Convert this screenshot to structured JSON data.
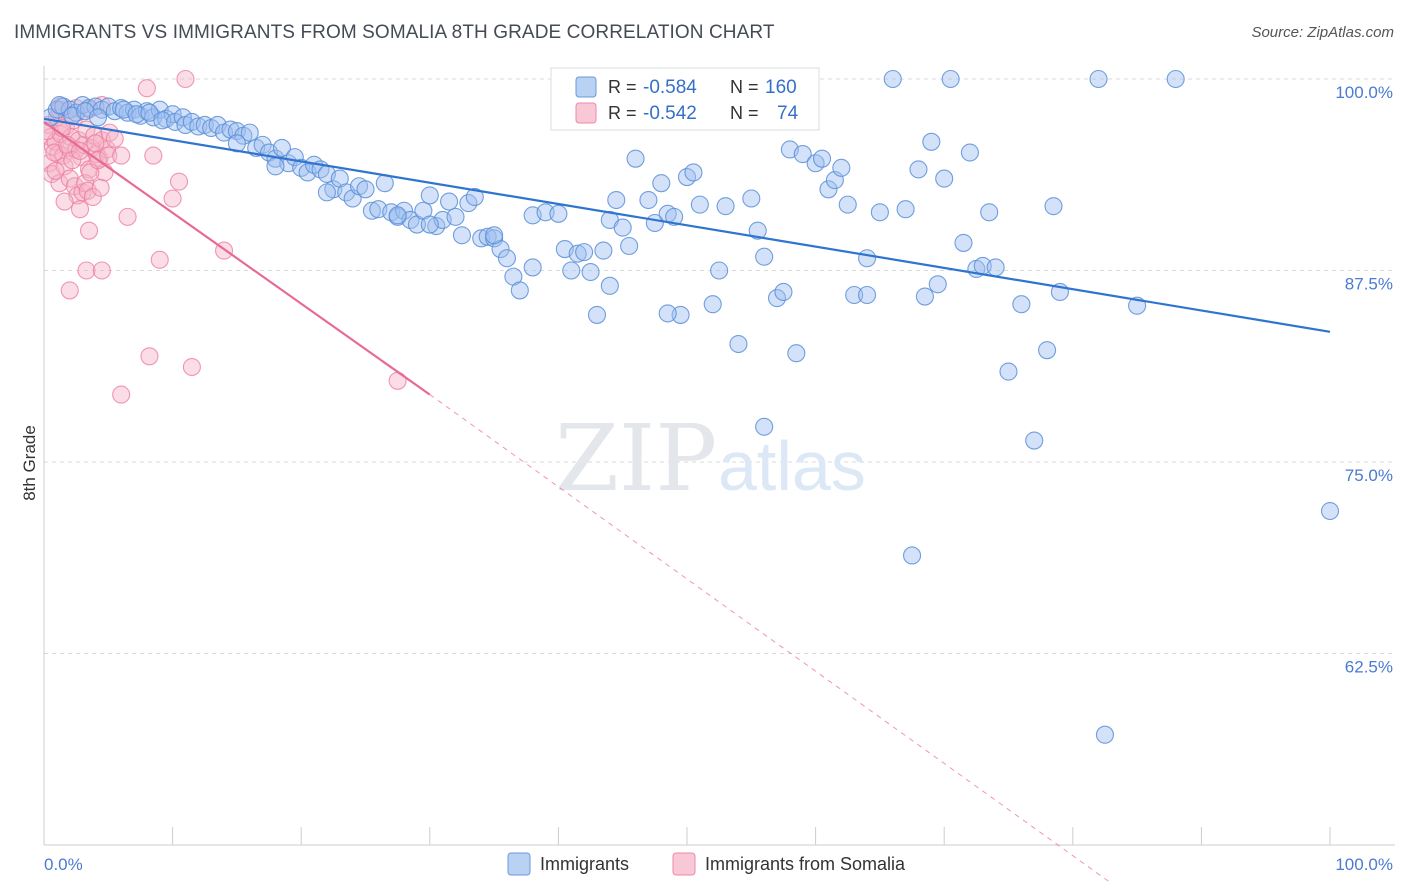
{
  "title": "IMMIGRANTS VS IMMIGRANTS FROM SOMALIA 8TH GRADE CORRELATION CHART",
  "source": "Source: ZipAtlas.com",
  "colors": {
    "blue_fill": "#9dbff0",
    "blue_stroke": "#5b8fd8",
    "blue_line": "#2f74d0",
    "pink_fill": "#f5b3c8",
    "pink_stroke": "#ee7ea2",
    "pink_line": "#e86a92",
    "grid": "#d6d9de",
    "axis_label": "#4a7bd0"
  },
  "legend_top": {
    "rows": [
      {
        "r_label": "R =",
        "r_value": "-0.584",
        "n_label": "N =",
        "n_value": "160"
      },
      {
        "r_label": "R =",
        "r_value": "-0.542",
        "n_label": "N =",
        "n_value": "74"
      }
    ]
  },
  "chart_data": {
    "type": "scatter",
    "title": "IMMIGRANTS VS IMMIGRANTS FROM SOMALIA 8TH GRADE CORRELATION CHART",
    "xlabel": "",
    "ylabel": "8th Grade",
    "xlim": [
      0,
      100
    ],
    "ylim": [
      50,
      100
    ],
    "x_tick_labels": [
      "0.0%",
      "100.0%"
    ],
    "y_ticks": [
      62.5,
      75.0,
      87.5,
      100.0
    ],
    "y_tick_labels": [
      "62.5%",
      "75.0%",
      "87.5%",
      "100.0%"
    ],
    "grid": "horizontal dashed",
    "legend": "top-center and bottom-center",
    "series": [
      {
        "name": "Immigrants",
        "R": -0.584,
        "N": 160,
        "trend": {
          "x": [
            0,
            100
          ],
          "y": [
            97.4,
            83.5
          ],
          "style": "solid"
        },
        "points": [
          [
            0.5,
            97.5
          ],
          [
            1.0,
            98.0
          ],
          [
            1.5,
            98.2
          ],
          [
            2.0,
            98.0
          ],
          [
            2.5,
            97.8
          ],
          [
            3.0,
            98.3
          ],
          [
            3.5,
            98.1
          ],
          [
            4.0,
            98.2
          ],
          [
            4.5,
            98.0
          ],
          [
            5.0,
            98.2
          ],
          [
            5.5,
            97.9
          ],
          [
            6.0,
            98.1
          ],
          [
            6.5,
            97.8
          ],
          [
            7.0,
            98.0
          ],
          [
            7.5,
            97.6
          ],
          [
            8.0,
            97.9
          ],
          [
            8.5,
            97.5
          ],
          [
            9.0,
            98.0
          ],
          [
            9.5,
            97.4
          ],
          [
            10.0,
            97.7
          ],
          [
            1.2,
            98.3
          ],
          [
            2.2,
            97.6
          ],
          [
            3.2,
            97.9
          ],
          [
            4.2,
            97.5
          ],
          [
            6.2,
            98.0
          ],
          [
            7.2,
            97.7
          ],
          [
            8.2,
            97.8
          ],
          [
            9.2,
            97.3
          ],
          [
            10.2,
            97.2
          ],
          [
            10.8,
            97.5
          ],
          [
            11.0,
            97.0
          ],
          [
            11.5,
            97.2
          ],
          [
            12.0,
            96.9
          ],
          [
            12.5,
            97.0
          ],
          [
            13.0,
            96.8
          ],
          [
            13.5,
            97.0
          ],
          [
            14.0,
            96.5
          ],
          [
            14.5,
            96.7
          ],
          [
            15.0,
            96.6
          ],
          [
            15.5,
            96.3
          ],
          [
            16.0,
            96.5
          ],
          [
            16.5,
            95.5
          ],
          [
            17.0,
            95.7
          ],
          [
            17.5,
            95.2
          ],
          [
            18.0,
            94.8
          ],
          [
            18.5,
            95.5
          ],
          [
            19.0,
            94.5
          ],
          [
            19.5,
            94.9
          ],
          [
            20.0,
            94.2
          ],
          [
            20.5,
            93.9
          ],
          [
            21.0,
            94.4
          ],
          [
            21.5,
            94.1
          ],
          [
            22.0,
            93.8
          ],
          [
            22.5,
            92.8
          ],
          [
            23.0,
            93.5
          ],
          [
            23.5,
            92.6
          ],
          [
            24.0,
            92.2
          ],
          [
            24.5,
            93.0
          ],
          [
            25.0,
            92.8
          ],
          [
            25.5,
            91.4
          ],
          [
            26.0,
            91.5
          ],
          [
            26.5,
            93.2
          ],
          [
            27.0,
            91.3
          ],
          [
            27.5,
            91.0
          ],
          [
            28.0,
            91.4
          ],
          [
            28.5,
            90.8
          ],
          [
            29.0,
            90.5
          ],
          [
            29.5,
            91.4
          ],
          [
            30.0,
            92.4
          ],
          [
            30.5,
            90.4
          ],
          [
            31.0,
            90.8
          ],
          [
            31.5,
            92.0
          ],
          [
            32.0,
            91.0
          ],
          [
            32.5,
            89.8
          ],
          [
            33.0,
            91.9
          ],
          [
            33.5,
            92.3
          ],
          [
            34.0,
            89.6
          ],
          [
            34.5,
            89.7
          ],
          [
            35.0,
            89.6
          ],
          [
            35.5,
            88.9
          ],
          [
            36.0,
            88.3
          ],
          [
            36.5,
            87.1
          ],
          [
            37.0,
            86.2
          ],
          [
            38.0,
            91.1
          ],
          [
            39.0,
            91.3
          ],
          [
            40.0,
            91.2
          ],
          [
            40.5,
            88.9
          ],
          [
            41.0,
            87.5
          ],
          [
            41.5,
            88.6
          ],
          [
            42.0,
            88.7
          ],
          [
            42.5,
            87.4
          ],
          [
            43.0,
            84.6
          ],
          [
            43.5,
            88.8
          ],
          [
            44.0,
            90.8
          ],
          [
            44.5,
            92.1
          ],
          [
            45.0,
            90.3
          ],
          [
            45.5,
            89.1
          ],
          [
            46.0,
            94.8
          ],
          [
            47.0,
            92.1
          ],
          [
            47.5,
            90.6
          ],
          [
            48.0,
            93.2
          ],
          [
            48.5,
            91.2
          ],
          [
            49.0,
            91.0
          ],
          [
            49.5,
            84.6
          ],
          [
            50.0,
            93.6
          ],
          [
            50.5,
            93.9
          ],
          [
            51.0,
            91.8
          ],
          [
            52.0,
            85.3
          ],
          [
            52.5,
            87.5
          ],
          [
            53.0,
            91.7
          ],
          [
            54.0,
            82.7
          ],
          [
            55.0,
            92.2
          ],
          [
            55.5,
            90.1
          ],
          [
            56.0,
            88.4
          ],
          [
            57.0,
            85.7
          ],
          [
            57.5,
            86.1
          ],
          [
            58.0,
            95.4
          ],
          [
            58.5,
            82.1
          ],
          [
            59.0,
            95.1
          ],
          [
            60.0,
            94.5
          ],
          [
            60.5,
            94.8
          ],
          [
            61.0,
            92.8
          ],
          [
            61.5,
            93.4
          ],
          [
            62.0,
            94.2
          ],
          [
            62.5,
            91.8
          ],
          [
            63.0,
            85.9
          ],
          [
            64.0,
            88.3
          ],
          [
            65.0,
            91.3
          ],
          [
            66.0,
            100.0
          ],
          [
            67.0,
            91.5
          ],
          [
            68.0,
            94.1
          ],
          [
            68.5,
            85.8
          ],
          [
            69.0,
            95.9
          ],
          [
            69.5,
            86.6
          ],
          [
            70.0,
            93.5
          ],
          [
            70.5,
            100.0
          ],
          [
            71.5,
            89.3
          ],
          [
            72.0,
            95.2
          ],
          [
            72.5,
            87.6
          ],
          [
            73.0,
            87.8
          ],
          [
            73.5,
            91.3
          ],
          [
            74.0,
            87.7
          ],
          [
            75.0,
            80.9
          ],
          [
            76.0,
            85.3
          ],
          [
            77.0,
            76.4
          ],
          [
            78.0,
            82.3
          ],
          [
            78.5,
            91.7
          ],
          [
            79.0,
            86.1
          ],
          [
            82.0,
            100.0
          ],
          [
            85.0,
            85.2
          ],
          [
            88.0,
            100.0
          ],
          [
            82.5,
            57.2
          ],
          [
            100.0,
            71.8
          ],
          [
            67.5,
            68.9
          ],
          [
            56.0,
            77.3
          ],
          [
            48.5,
            84.7
          ],
          [
            64.0,
            85.9
          ],
          [
            44.0,
            86.5
          ],
          [
            38.0,
            87.7
          ],
          [
            35.0,
            89.8
          ],
          [
            30.0,
            90.5
          ],
          [
            27.5,
            91.1
          ],
          [
            22.0,
            92.6
          ],
          [
            18.0,
            94.3
          ],
          [
            15.0,
            95.8
          ]
        ]
      },
      {
        "name": "Immigrants from Somalia",
        "R": -0.542,
        "N": 74,
        "trend": {
          "x": [
            0,
            30
          ],
          "y": [
            97.2,
            79.4
          ],
          "style": "solid",
          "extension": {
            "x": [
              30,
              83
            ],
            "y": [
              79.4,
              47.5
            ],
            "style": "dashed"
          }
        },
        "points": [
          [
            0.3,
            97.0
          ],
          [
            0.5,
            96.2
          ],
          [
            0.7,
            95.6
          ],
          [
            0.9,
            95.9
          ],
          [
            1.1,
            95.1
          ],
          [
            1.3,
            96.4
          ],
          [
            1.5,
            95.0
          ],
          [
            1.7,
            96.9
          ],
          [
            1.9,
            95.5
          ],
          [
            2.1,
            96.2
          ],
          [
            2.3,
            97.3
          ],
          [
            2.5,
            95.4
          ],
          [
            2.7,
            96.0
          ],
          [
            2.9,
            94.9
          ],
          [
            3.1,
            95.7
          ],
          [
            3.3,
            96.7
          ],
          [
            3.5,
            94.1
          ],
          [
            3.7,
            95.5
          ],
          [
            3.9,
            96.3
          ],
          [
            4.1,
            95.1
          ],
          [
            4.3,
            94.8
          ],
          [
            4.5,
            96.0
          ],
          [
            4.7,
            93.9
          ],
          [
            4.9,
            95.4
          ],
          [
            5.1,
            96.5
          ],
          [
            0.4,
            94.5
          ],
          [
            0.6,
            93.8
          ],
          [
            0.8,
            95.2
          ],
          [
            1.0,
            97.5
          ],
          [
            1.2,
            93.2
          ],
          [
            1.4,
            96.8
          ],
          [
            1.6,
            94.3
          ],
          [
            1.8,
            95.7
          ],
          [
            2.0,
            93.5
          ],
          [
            2.2,
            94.7
          ],
          [
            2.4,
            93.0
          ],
          [
            2.6,
            92.4
          ],
          [
            2.8,
            95.3
          ],
          [
            3.0,
            92.6
          ],
          [
            3.2,
            93.2
          ],
          [
            3.4,
            92.7
          ],
          [
            3.6,
            93.9
          ],
          [
            3.8,
            92.3
          ],
          [
            4.0,
            95.8
          ],
          [
            4.2,
            94.7
          ],
          [
            4.4,
            92.9
          ],
          [
            5.0,
            95.0
          ],
          [
            5.5,
            96.1
          ],
          [
            6.0,
            95.0
          ],
          [
            1.3,
            98.2
          ],
          [
            2.5,
            98.1
          ],
          [
            3.5,
            98.0
          ],
          [
            4.5,
            98.3
          ],
          [
            6.5,
            91.0
          ],
          [
            8.5,
            95.0
          ],
          [
            10.0,
            92.2
          ],
          [
            10.5,
            93.3
          ],
          [
            11.0,
            100.0
          ],
          [
            8.0,
            99.4
          ],
          [
            3.5,
            90.1
          ],
          [
            3.3,
            87.5
          ],
          [
            4.5,
            87.5
          ],
          [
            2.0,
            86.2
          ],
          [
            9.0,
            88.2
          ],
          [
            14.0,
            88.8
          ],
          [
            8.2,
            81.9
          ],
          [
            11.5,
            81.2
          ],
          [
            6.0,
            79.4
          ],
          [
            27.5,
            80.3
          ],
          [
            1.2,
            98.0
          ],
          [
            0.2,
            96.6
          ],
          [
            0.9,
            94.0
          ],
          [
            1.6,
            92.0
          ],
          [
            2.8,
            91.5
          ]
        ]
      }
    ]
  },
  "legend_bottom": {
    "items": [
      {
        "label": "Immigrants"
      },
      {
        "label": "Immigrants from Somalia"
      }
    ]
  }
}
